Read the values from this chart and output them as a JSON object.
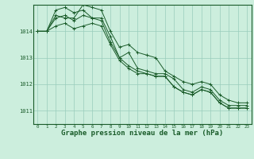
{
  "bg_color": "#cceedd",
  "grid_color": "#99ccbb",
  "line_color": "#1a5c2a",
  "title": "Graphe pression niveau de la mer (hPa)",
  "title_fontsize": 6.5,
  "xlim": [
    -0.5,
    23.5
  ],
  "ylim": [
    1010.5,
    1015.0
  ],
  "yticks": [
    1011,
    1012,
    1013,
    1014
  ],
  "xticks": [
    0,
    1,
    2,
    3,
    4,
    5,
    6,
    7,
    8,
    9,
    10,
    11,
    12,
    13,
    14,
    15,
    16,
    17,
    18,
    19,
    20,
    21,
    22,
    23
  ],
  "series": [
    [
      1014.0,
      1014.0,
      1014.5,
      1014.6,
      1014.4,
      1014.6,
      1014.5,
      1014.5,
      1013.8,
      1013.0,
      1013.2,
      1012.6,
      1012.5,
      1012.4,
      1012.4,
      1012.2,
      1011.8,
      1011.7,
      1011.9,
      1011.8,
      1011.4,
      1011.2,
      1011.2,
      1011.2
    ],
    [
      1014.0,
      1014.0,
      1014.8,
      1014.9,
      1014.7,
      1014.8,
      1014.5,
      1014.4,
      1013.6,
      1013.0,
      1012.7,
      1012.5,
      1012.4,
      1012.3,
      1012.3,
      1011.9,
      1011.7,
      1011.6,
      1011.8,
      1011.7,
      1011.3,
      1011.1,
      1011.1,
      1011.1
    ],
    [
      1014.0,
      1014.0,
      1014.2,
      1014.3,
      1014.1,
      1014.2,
      1014.3,
      1014.2,
      1013.5,
      1012.9,
      1012.6,
      1012.4,
      1012.4,
      1012.3,
      1012.3,
      1011.9,
      1011.7,
      1011.6,
      1011.8,
      1011.7,
      1011.3,
      1011.1,
      1011.1,
      1011.1
    ],
    [
      1014.0,
      1014.0,
      1014.6,
      1014.5,
      1014.5,
      1015.0,
      1014.9,
      1014.8,
      1014.0,
      1013.4,
      1013.5,
      1013.2,
      1013.1,
      1013.0,
      1012.5,
      1012.3,
      1012.1,
      1012.0,
      1012.1,
      1012.0,
      1011.6,
      1011.4,
      1011.3,
      1011.3
    ]
  ]
}
